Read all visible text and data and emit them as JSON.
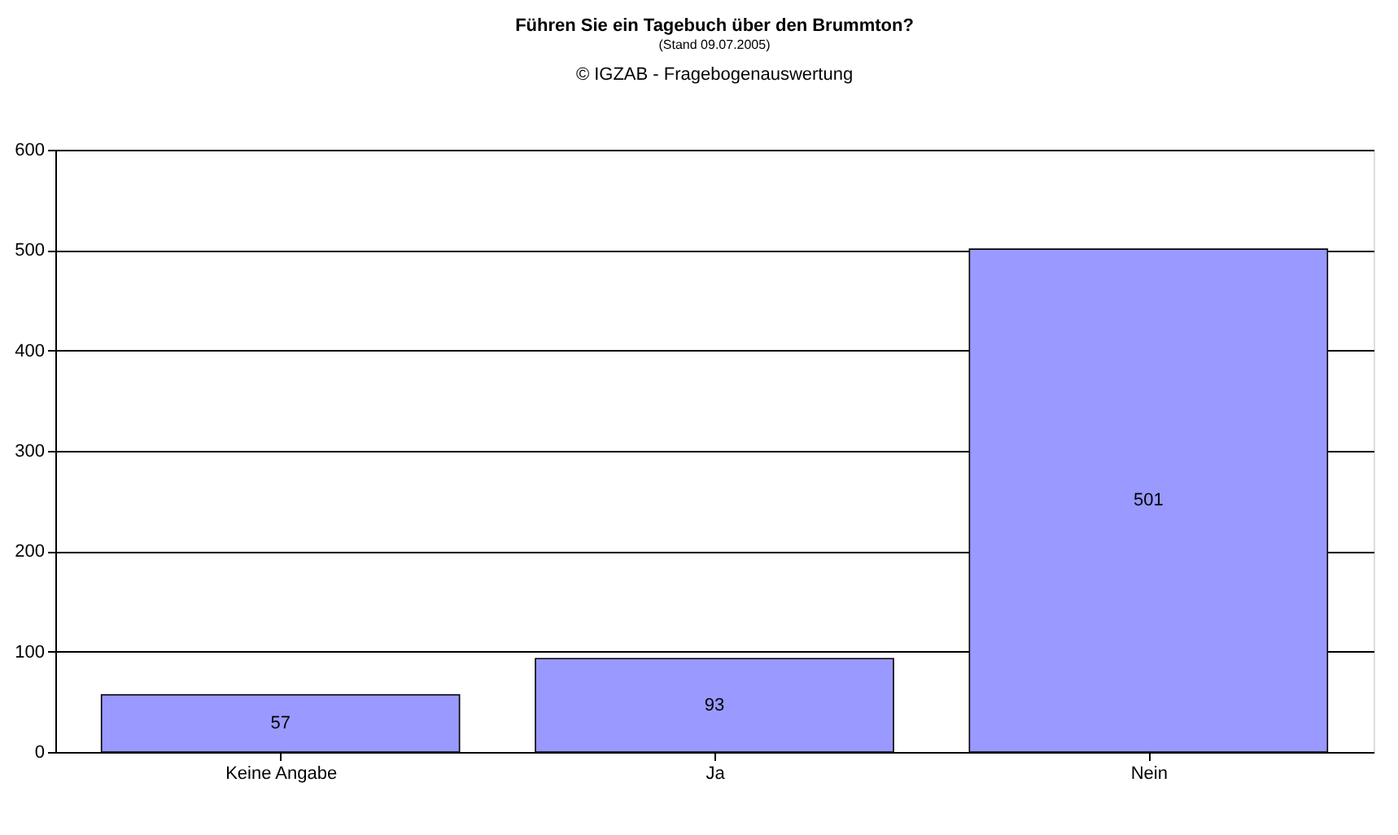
{
  "chart_data": {
    "type": "bar",
    "title": "Führen Sie ein Tagebuch über den Brummton?",
    "subtitle": "(Stand 09.07.2005)",
    "annotations": [
      "© IGZAB - Fragebogenauswertung"
    ],
    "categories": [
      "Keine Angabe",
      "Ja",
      "Nein"
    ],
    "values": [
      57,
      93,
      501
    ],
    "color": "#9999ff",
    "ylim": [
      0,
      600
    ],
    "yticks": [
      0,
      100,
      200,
      300,
      400,
      500,
      600
    ],
    "grid": "y",
    "data_labels": true
  }
}
